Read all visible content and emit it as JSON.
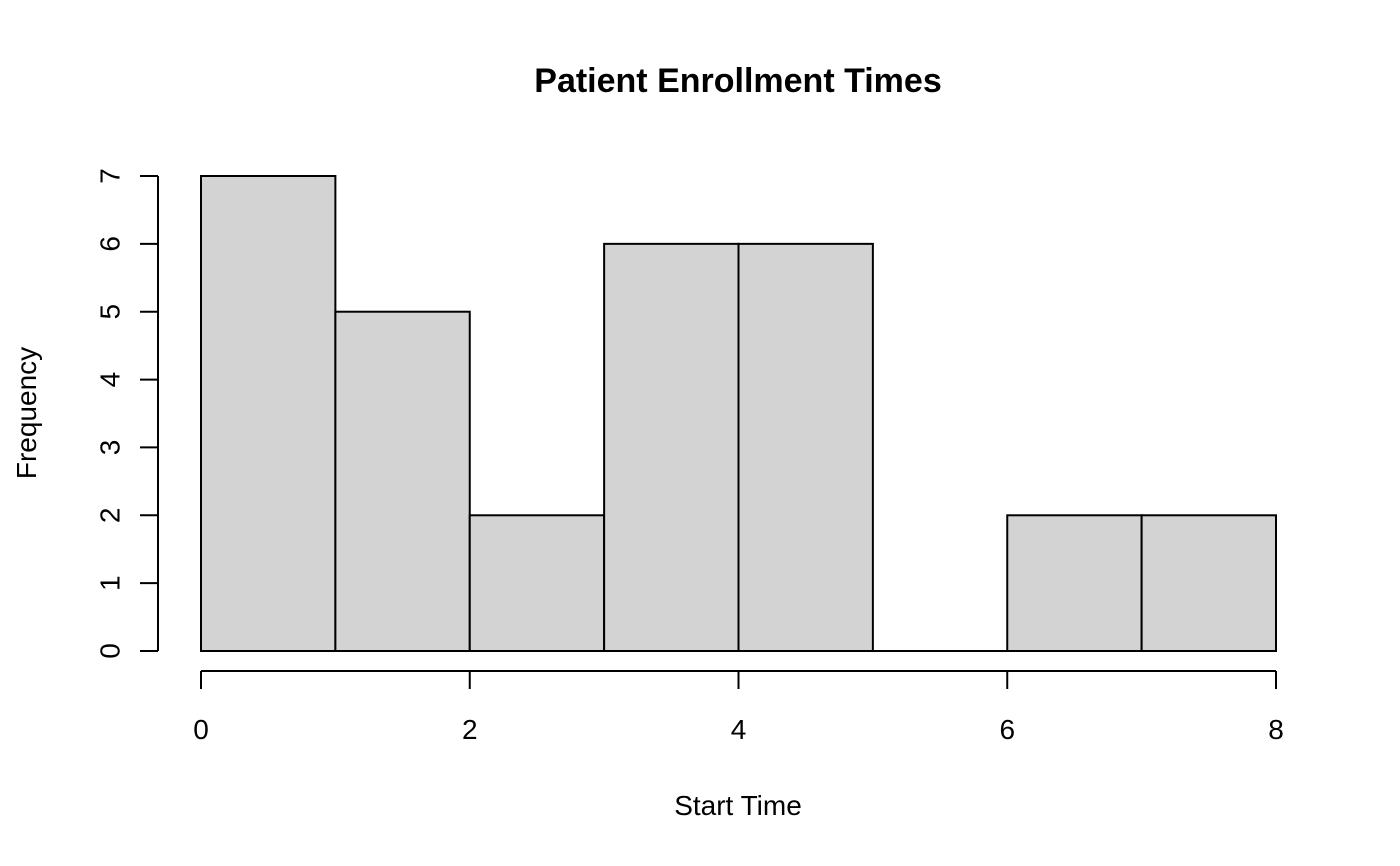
{
  "chart_data": {
    "type": "bar",
    "title": "Patient Enrollment Times",
    "xlabel": "Start Time",
    "ylabel": "Frequency",
    "bins": [
      {
        "start": 0,
        "end": 1,
        "count": 7
      },
      {
        "start": 1,
        "end": 2,
        "count": 5
      },
      {
        "start": 2,
        "end": 3,
        "count": 2
      },
      {
        "start": 3,
        "end": 4,
        "count": 6
      },
      {
        "start": 4,
        "end": 5,
        "count": 6
      },
      {
        "start": 5,
        "end": 6,
        "count": 0
      },
      {
        "start": 6,
        "end": 7,
        "count": 2
      },
      {
        "start": 7,
        "end": 8,
        "count": 2
      }
    ],
    "xlim": [
      0,
      8
    ],
    "ylim": [
      0,
      7
    ],
    "x_ticks": [
      "0",
      "2",
      "4",
      "6",
      "8"
    ],
    "y_ticks": [
      "0",
      "1",
      "2",
      "3",
      "4",
      "5",
      "6",
      "7"
    ],
    "bar_fill": "#d3d3d3",
    "grid": false
  }
}
